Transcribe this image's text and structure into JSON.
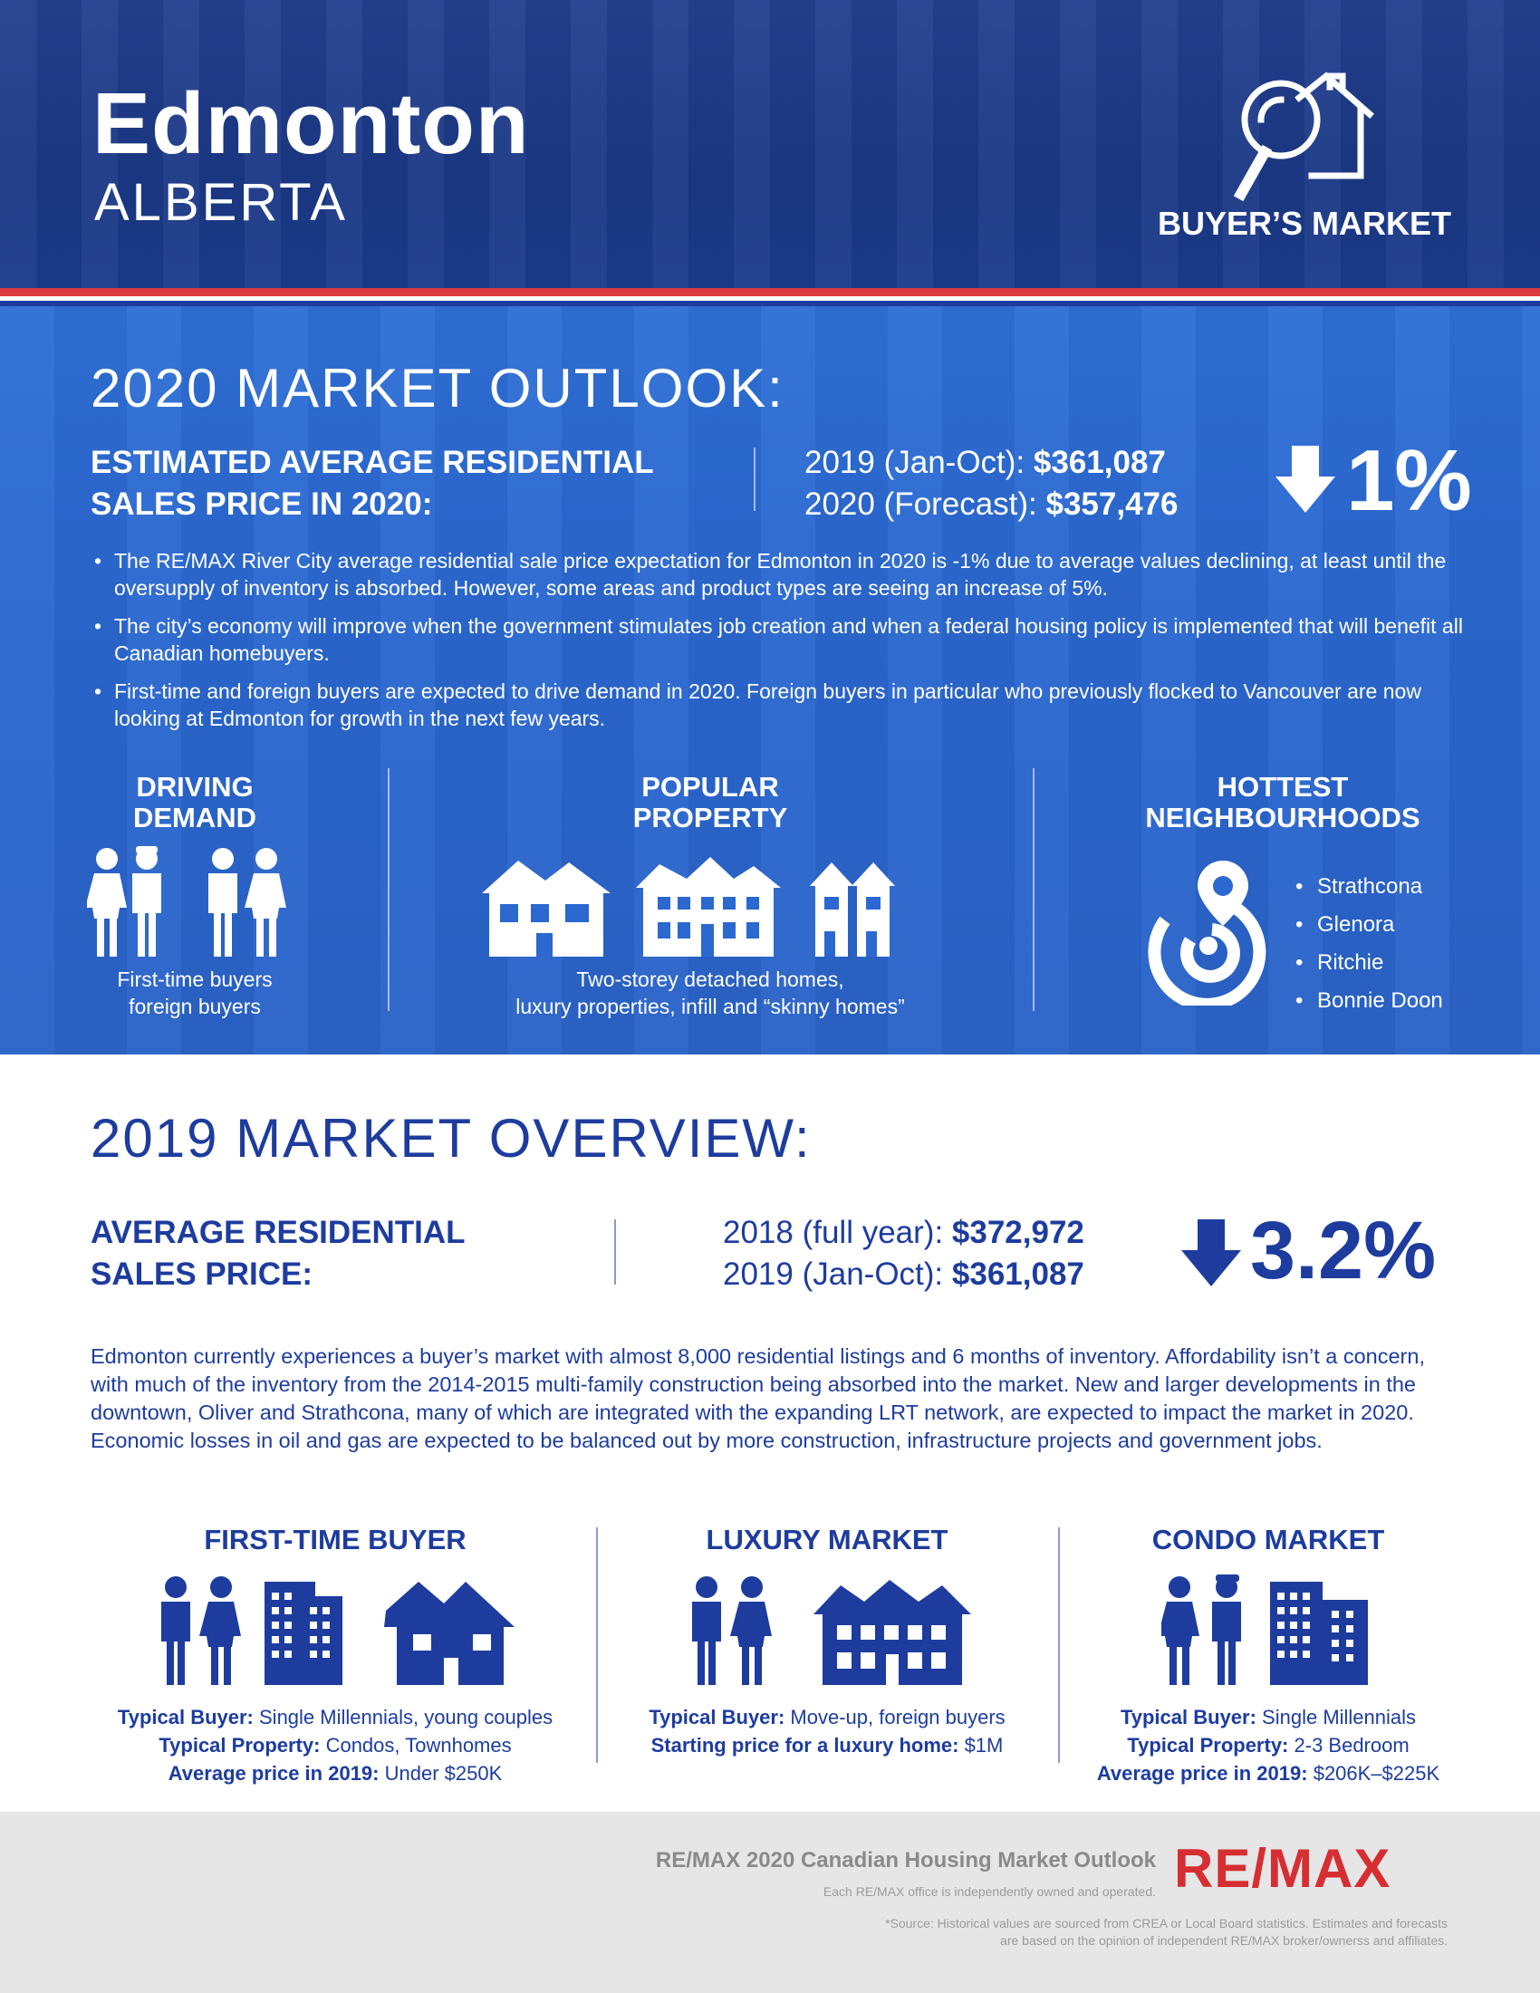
{
  "header": {
    "city": "Edmonton",
    "province": "ALBERTA",
    "market_type": "BUYER’S MARKET",
    "market_icon": "magnifier-house-icon"
  },
  "outlook": {
    "heading": "2020 MARKET OUTLOOK:",
    "label_line1": "ESTIMATED AVERAGE RESIDENTIAL",
    "label_line2": "SALES PRICE IN 2020:",
    "price1_label": "2019 (Jan-Oct): ",
    "price1_value": "$361,087",
    "price2_label": "2020 (Forecast): ",
    "price2_value": "$357,476",
    "change": "1%",
    "change_direction": "down",
    "bullets": [
      "The RE/MAX River City average residential sale price expectation for Edmonton in 2020 is -1% due to average values declining, at least until the oversupply of inventory is absorbed. However, some areas and product types are seeing an increase of 5%.",
      "The city’s economy will improve when the government stimulates job creation and when a federal housing policy is implemented that will benefit all Canadian homebuyers.",
      "First-time and foreign buyers are expected to drive demand in 2020. Foreign buyers in particular who previously flocked to Vancouver are now looking at Edmonton for growth in the next few years."
    ],
    "driving_demand": {
      "title1": "DRIVING",
      "title2": "DEMAND",
      "caption1": "First-time buyers",
      "caption2": "foreign buyers"
    },
    "popular_property": {
      "title1": "POPULAR",
      "title2": "PROPERTY",
      "caption1": "Two-storey detached homes,",
      "caption2": "luxury properties, infill and “skinny homes”"
    },
    "hottest_neighbourhoods": {
      "title1": "HOTTEST",
      "title2": "NEIGHBOURHOODS",
      "items": [
        "Strathcona",
        "Glenora",
        "Ritchie",
        "Bonnie Doon"
      ]
    }
  },
  "overview": {
    "heading": "2019 MARKET OVERVIEW:",
    "label_line1": "AVERAGE RESIDENTIAL",
    "label_line2": "SALES PRICE:",
    "price1_label": "2018 (full year): ",
    "price1_value": "$372,972",
    "price2_label": "2019 (Jan-Oct): ",
    "price2_value": "$361,087",
    "change": "3.2%",
    "change_direction": "down",
    "paragraph": "Edmonton currently experiences a buyer’s market with almost 8,000 residential listings and 6 months of inventory. Affordability isn’t a concern, with much of the inventory from the 2014-2015 multi-family construction being absorbed into the market. New and larger developments in the downtown, Oliver and Strathcona, many of which are integrated with the expanding LRT network, are expected to impact the market in 2020. Economic losses in oil and gas are expected to be balanced out by more construction, infrastructure projects and government jobs."
  },
  "segments": {
    "first_time": {
      "title": "FIRST-TIME BUYER",
      "l1_label": "Typical Buyer:",
      "l1_value": " Single Millennials, young couples",
      "l2_label": "Typical Property:",
      "l2_value": " Condos, Townhomes",
      "l3_label": "Average price in 2019:",
      "l3_value": " Under $250K"
    },
    "luxury": {
      "title": "LUXURY MARKET",
      "l1_label": "Typical Buyer:",
      "l1_value": " Move-up, foreign buyers",
      "l2_label": "Starting price for a luxury home:",
      "l2_value": " $1M"
    },
    "condo": {
      "title": "CONDO MARKET",
      "l1_label": "Typical Buyer:",
      "l1_value": " Single Millennials",
      "l2_label": "Typical Property:",
      "l2_value": " 2-3 Bedroom",
      "l3_label": "Average price in 2019:",
      "l3_value": " $206K–$225K"
    }
  },
  "footer": {
    "title": "RE/MAX 2020 Canadian Housing Market Outlook",
    "subtitle": "Each RE/MAX office is independently owned and operated.",
    "source_line1": "*Source: Historical values are sourced from CREA or Local Board statistics. Estimates and forecasts",
    "source_line2": "are based on the opinion of independent RE/MAX broker/ownerss and affiliates.",
    "logo_text": "RE/MAX"
  },
  "colors": {
    "navy": "#1d3c9e",
    "header_blue": "#1b3885",
    "section_blue": "#2b68d0",
    "accent_red": "#d93a3f",
    "logo_red": "#d62e32",
    "footer_gray": "#e6e6e6"
  }
}
